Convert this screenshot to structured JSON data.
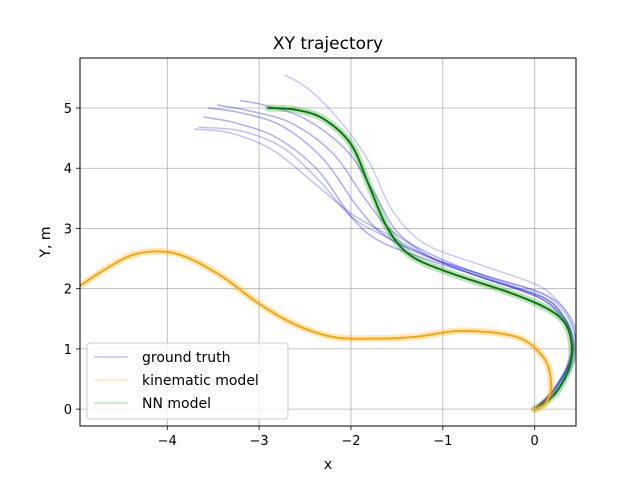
{
  "chart_data": {
    "type": "line",
    "title": "XY trajectory",
    "xlabel": "x",
    "ylabel": "Y, m",
    "xlim": [
      -4.95,
      0.45
    ],
    "ylim": [
      -0.28,
      5.83
    ],
    "xticks": [
      -4,
      -3,
      -2,
      -1,
      0
    ],
    "xtick_labels": [
      "−4",
      "−3",
      "−2",
      "−1",
      "0"
    ],
    "yticks": [
      0,
      1,
      2,
      3,
      4,
      5
    ],
    "ytick_labels": [
      "0",
      "1",
      "2",
      "3",
      "4",
      "5"
    ],
    "grid": true,
    "legend_position": "lower-left",
    "legend": [
      {
        "label": "ground truth",
        "color": "#0000ff"
      },
      {
        "label": "kinematic model",
        "color": "#ffa500"
      },
      {
        "label": "NN model",
        "color": "#008000"
      }
    ],
    "series": [
      {
        "name": "ground truth",
        "color": "#0000ff",
        "opacity": 0.22,
        "x": [
          0.0,
          0.18,
          0.38,
          0.44,
          0.4,
          0.25,
          0.0,
          -0.6,
          -1.2,
          -1.55,
          -1.8,
          -2.1,
          -2.45,
          -2.72
        ],
        "y": [
          0.0,
          0.3,
          0.75,
          1.1,
          1.45,
          1.8,
          2.08,
          2.4,
          2.75,
          3.3,
          4.1,
          4.75,
          5.3,
          5.55
        ]
      },
      {
        "name": "ground truth",
        "color": "#0000ff",
        "opacity": 0.32,
        "x": [
          0.0,
          0.2,
          0.36,
          0.4,
          0.33,
          0.1,
          -0.5,
          -1.1,
          -1.5,
          -1.75,
          -2.05,
          -2.5,
          -2.95,
          -3.2
        ],
        "y": [
          0.0,
          0.3,
          0.75,
          1.1,
          1.5,
          1.85,
          2.15,
          2.5,
          2.95,
          3.6,
          4.3,
          4.82,
          5.05,
          5.12
        ]
      },
      {
        "name": "ground truth",
        "color": "#0000ff",
        "opacity": 0.32,
        "x": [
          0.0,
          0.2,
          0.38,
          0.42,
          0.33,
          0.1,
          -0.5,
          -1.1,
          -1.55,
          -1.85,
          -2.2,
          -2.65,
          -3.1,
          -3.45
        ],
        "y": [
          0.0,
          0.3,
          0.75,
          1.12,
          1.5,
          1.85,
          2.18,
          2.55,
          2.95,
          3.5,
          4.25,
          4.75,
          4.95,
          5.05
        ]
      },
      {
        "name": "ground truth",
        "color": "#0000ff",
        "opacity": 0.32,
        "x": [
          0.0,
          0.2,
          0.37,
          0.4,
          0.3,
          0.05,
          -0.6,
          -1.2,
          -1.65,
          -1.95,
          -2.3,
          -2.75,
          -3.2,
          -3.55
        ],
        "y": [
          0.0,
          0.3,
          0.75,
          1.12,
          1.5,
          1.85,
          2.2,
          2.55,
          2.9,
          3.4,
          4.15,
          4.7,
          4.92,
          5.0
        ]
      },
      {
        "name": "ground truth",
        "color": "#0000ff",
        "opacity": 0.32,
        "x": [
          0.0,
          0.22,
          0.38,
          0.42,
          0.32,
          0.05,
          -0.6,
          -1.2,
          -1.7,
          -2.0,
          -2.35,
          -2.8,
          -3.25,
          -3.6
        ],
        "y": [
          0.0,
          0.3,
          0.75,
          1.12,
          1.5,
          1.85,
          2.2,
          2.5,
          2.8,
          3.2,
          3.95,
          4.5,
          4.75,
          4.85
        ]
      },
      {
        "name": "ground truth",
        "color": "#0000ff",
        "opacity": 0.25,
        "x": [
          0.0,
          0.24,
          0.4,
          0.45,
          0.35,
          0.1,
          -0.5,
          -1.1,
          -1.6,
          -2.0,
          -2.35,
          -2.75,
          -3.2,
          -3.65
        ],
        "y": [
          0.0,
          0.3,
          0.75,
          1.12,
          1.55,
          1.9,
          2.2,
          2.5,
          2.85,
          3.2,
          3.8,
          4.35,
          4.62,
          4.68
        ]
      },
      {
        "name": "ground truth",
        "color": "#0000ff",
        "opacity": 0.25,
        "x": [
          0.0,
          0.24,
          0.42,
          0.47,
          0.38,
          0.12,
          -0.5,
          -1.1,
          -1.6,
          -2.0,
          -2.4,
          -2.85,
          -3.3,
          -3.7
        ],
        "y": [
          0.0,
          0.3,
          0.75,
          1.12,
          1.55,
          1.9,
          2.2,
          2.5,
          2.9,
          3.25,
          3.75,
          4.3,
          4.58,
          4.65
        ]
      },
      {
        "name": "NN model",
        "color": "#008000",
        "opacity": 0.25,
        "width": 7,
        "x": [
          0.0,
          0.22,
          0.38,
          0.4,
          0.32,
          0.1,
          -0.3,
          -0.9,
          -1.35,
          -1.6,
          -1.8,
          -2.0,
          -2.3,
          -2.6,
          -2.9
        ],
        "y": [
          0.0,
          0.25,
          0.7,
          1.1,
          1.45,
          1.7,
          1.95,
          2.25,
          2.55,
          3.0,
          3.7,
          4.4,
          4.82,
          4.97,
          5.0
        ]
      },
      {
        "name": "NN model",
        "color": "#008000",
        "opacity": 1.0,
        "width": 2,
        "x": [
          0.0,
          0.22,
          0.38,
          0.4,
          0.32,
          0.1,
          -0.3,
          -0.9,
          -1.35,
          -1.6,
          -1.8,
          -2.0,
          -2.3,
          -2.6,
          -2.9
        ],
        "y": [
          0.0,
          0.25,
          0.7,
          1.1,
          1.45,
          1.7,
          1.95,
          2.25,
          2.55,
          3.0,
          3.7,
          4.4,
          4.82,
          4.97,
          5.0
        ]
      },
      {
        "name": "kinematic model",
        "color": "#ffa500",
        "opacity": 0.25,
        "width": 7,
        "x": [
          0.0,
          0.12,
          0.18,
          0.1,
          -0.2,
          -0.8,
          -1.3,
          -1.8,
          -2.2,
          -2.6,
          -3.0,
          -3.4,
          -3.8,
          -4.1,
          -4.4,
          -4.7,
          -4.95
        ],
        "y": [
          0.0,
          0.1,
          0.4,
          0.85,
          1.2,
          1.3,
          1.2,
          1.17,
          1.2,
          1.4,
          1.75,
          2.2,
          2.53,
          2.62,
          2.55,
          2.3,
          2.05
        ]
      },
      {
        "name": "kinematic model",
        "color": "#ffa500",
        "opacity": 1.0,
        "width": 2,
        "x": [
          0.0,
          0.12,
          0.18,
          0.1,
          -0.2,
          -0.8,
          -1.3,
          -1.8,
          -2.2,
          -2.6,
          -3.0,
          -3.4,
          -3.8,
          -4.1,
          -4.4,
          -4.7,
          -4.95
        ],
        "y": [
          0.0,
          0.1,
          0.4,
          0.85,
          1.2,
          1.3,
          1.2,
          1.17,
          1.2,
          1.4,
          1.75,
          2.2,
          2.53,
          2.62,
          2.55,
          2.3,
          2.05
        ]
      }
    ]
  }
}
